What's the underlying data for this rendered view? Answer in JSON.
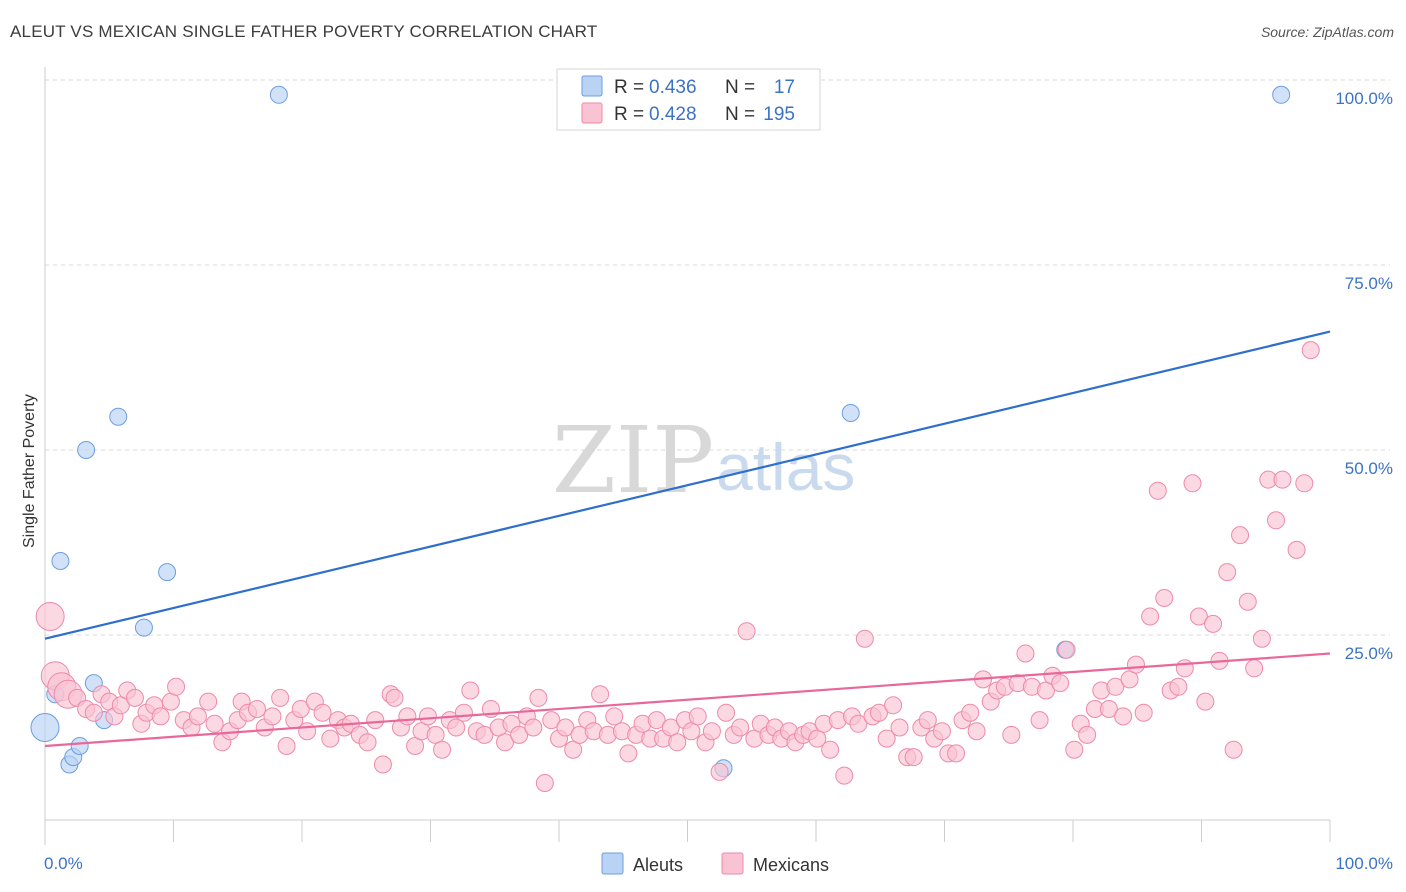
{
  "title": "ALEUT VS MEXICAN SINGLE FATHER POVERTY CORRELATION CHART",
  "source": "Source: ZipAtlas.com",
  "watermark": {
    "zip": "ZIP",
    "atlas": "atlas"
  },
  "colors": {
    "aleut_fill": "#b9d3f5",
    "aleut_stroke": "#6d9ee0",
    "aleut_line": "#2e6fcb",
    "mexican_fill": "#f9c3d3",
    "mexican_stroke": "#ee8aab",
    "mexican_line": "#e8689a",
    "tick_text": "#3b73c4",
    "grid": "#d9d9d9"
  },
  "legend": {
    "rows": [
      {
        "r_label": "R = ",
        "r_value": "0.436",
        "n_label": "N = ",
        "n_value": "17"
      },
      {
        "r_label": "R = ",
        "r_value": "0.428",
        "n_label": "N = ",
        "n_value": "195"
      }
    ]
  },
  "bottom_legend": [
    "Aleuts",
    "Mexicans"
  ],
  "chart_data": {
    "type": "scatter",
    "title": "ALEUT VS MEXICAN SINGLE FATHER POVERTY CORRELATION CHART",
    "xlabel": "",
    "ylabel": "Single Father Poverty",
    "xlim": [
      0,
      100
    ],
    "ylim": [
      0,
      100
    ],
    "x_tick_labels": [
      "0.0%",
      "100.0%"
    ],
    "y_tick_labels": [
      "25.0%",
      "50.0%",
      "75.0%",
      "100.0%"
    ],
    "y_ticks": [
      25,
      50,
      75,
      100
    ],
    "grid": true,
    "series": [
      {
        "name": "Aleuts",
        "r": 0.436,
        "n": 17,
        "trend": {
          "x": [
            0,
            100
          ],
          "y": [
            24.5,
            66.0
          ]
        },
        "points": [
          {
            "x": 0.0,
            "y": 12.5,
            "s": "l"
          },
          {
            "x": 0.8,
            "y": 17.0
          },
          {
            "x": 1.2,
            "y": 35.0
          },
          {
            "x": 1.9,
            "y": 7.5
          },
          {
            "x": 2.2,
            "y": 8.5
          },
          {
            "x": 2.7,
            "y": 10.0
          },
          {
            "x": 3.2,
            "y": 50.0
          },
          {
            "x": 3.8,
            "y": 18.5
          },
          {
            "x": 4.6,
            "y": 13.5
          },
          {
            "x": 5.7,
            "y": 54.5
          },
          {
            "x": 7.7,
            "y": 26.0
          },
          {
            "x": 9.5,
            "y": 33.5
          },
          {
            "x": 18.2,
            "y": 98.0
          },
          {
            "x": 52.8,
            "y": 7.0
          },
          {
            "x": 62.7,
            "y": 55.0
          },
          {
            "x": 79.4,
            "y": 23.0
          },
          {
            "x": 96.2,
            "y": 98.0
          }
        ]
      },
      {
        "name": "Mexicans",
        "r": 0.428,
        "n": 195,
        "trend": {
          "x": [
            0,
            100
          ],
          "y": [
            10.0,
            22.5
          ]
        },
        "points": [
          {
            "x": 0.4,
            "y": 27.5,
            "s": "l"
          },
          {
            "x": 0.8,
            "y": 19.5,
            "s": "l"
          },
          {
            "x": 1.3,
            "y": 18.0,
            "s": "l"
          },
          {
            "x": 1.8,
            "y": 17.0,
            "s": "l"
          },
          {
            "x": 2.5,
            "y": 16.5
          },
          {
            "x": 3.2,
            "y": 15.0
          },
          {
            "x": 3.8,
            "y": 14.5
          },
          {
            "x": 4.4,
            "y": 17.0
          },
          {
            "x": 5.0,
            "y": 16.0
          },
          {
            "x": 5.4,
            "y": 14.0
          },
          {
            "x": 5.9,
            "y": 15.5
          },
          {
            "x": 6.4,
            "y": 17.5
          },
          {
            "x": 7.0,
            "y": 16.5
          },
          {
            "x": 7.5,
            "y": 13.0
          },
          {
            "x": 7.9,
            "y": 14.5
          },
          {
            "x": 8.5,
            "y": 15.5
          },
          {
            "x": 9.0,
            "y": 14.0
          },
          {
            "x": 9.8,
            "y": 16.0
          },
          {
            "x": 10.2,
            "y": 18.0
          },
          {
            "x": 10.8,
            "y": 13.5
          },
          {
            "x": 11.4,
            "y": 12.5
          },
          {
            "x": 11.9,
            "y": 14.0
          },
          {
            "x": 12.7,
            "y": 16.0
          },
          {
            "x": 13.2,
            "y": 13.0
          },
          {
            "x": 13.8,
            "y": 10.5
          },
          {
            "x": 14.4,
            "y": 12.0
          },
          {
            "x": 15.0,
            "y": 13.5
          },
          {
            "x": 15.3,
            "y": 16.0
          },
          {
            "x": 15.8,
            "y": 14.5
          },
          {
            "x": 16.5,
            "y": 15.0
          },
          {
            "x": 17.1,
            "y": 12.5
          },
          {
            "x": 17.7,
            "y": 14.0
          },
          {
            "x": 18.3,
            "y": 16.5
          },
          {
            "x": 18.8,
            "y": 10.0
          },
          {
            "x": 19.4,
            "y": 13.5
          },
          {
            "x": 19.9,
            "y": 15.0
          },
          {
            "x": 20.4,
            "y": 12.0
          },
          {
            "x": 21.0,
            "y": 16.0
          },
          {
            "x": 21.6,
            "y": 14.5
          },
          {
            "x": 22.2,
            "y": 11.0
          },
          {
            "x": 22.8,
            "y": 13.5
          },
          {
            "x": 23.3,
            "y": 12.5
          },
          {
            "x": 23.8,
            "y": 13.0
          },
          {
            "x": 24.5,
            "y": 11.5
          },
          {
            "x": 25.1,
            "y": 10.5
          },
          {
            "x": 25.7,
            "y": 13.5
          },
          {
            "x": 26.3,
            "y": 7.5
          },
          {
            "x": 26.9,
            "y": 17.0
          },
          {
            "x": 27.2,
            "y": 16.5
          },
          {
            "x": 27.7,
            "y": 12.5
          },
          {
            "x": 28.2,
            "y": 14.0
          },
          {
            "x": 28.8,
            "y": 10.0
          },
          {
            "x": 29.3,
            "y": 12.0
          },
          {
            "x": 29.8,
            "y": 14.0
          },
          {
            "x": 30.4,
            "y": 11.5
          },
          {
            "x": 30.9,
            "y": 9.5
          },
          {
            "x": 31.5,
            "y": 13.5
          },
          {
            "x": 32.0,
            "y": 12.5
          },
          {
            "x": 32.6,
            "y": 14.5
          },
          {
            "x": 33.1,
            "y": 17.5
          },
          {
            "x": 33.6,
            "y": 12.0
          },
          {
            "x": 34.2,
            "y": 11.5
          },
          {
            "x": 34.7,
            "y": 15.0
          },
          {
            "x": 35.3,
            "y": 12.5
          },
          {
            "x": 35.8,
            "y": 10.5
          },
          {
            "x": 36.3,
            "y": 13.0
          },
          {
            "x": 36.9,
            "y": 11.5
          },
          {
            "x": 37.5,
            "y": 14.0
          },
          {
            "x": 38.0,
            "y": 12.5
          },
          {
            "x": 38.4,
            "y": 16.5
          },
          {
            "x": 38.9,
            "y": 5.0
          },
          {
            "x": 39.4,
            "y": 13.5
          },
          {
            "x": 40.0,
            "y": 11.0
          },
          {
            "x": 40.5,
            "y": 12.5
          },
          {
            "x": 41.1,
            "y": 9.5
          },
          {
            "x": 41.6,
            "y": 11.5
          },
          {
            "x": 42.2,
            "y": 13.5
          },
          {
            "x": 42.7,
            "y": 12.0
          },
          {
            "x": 43.2,
            "y": 17.0
          },
          {
            "x": 43.8,
            "y": 11.5
          },
          {
            "x": 44.3,
            "y": 14.0
          },
          {
            "x": 44.9,
            "y": 12.0
          },
          {
            "x": 45.4,
            "y": 9.0
          },
          {
            "x": 46.0,
            "y": 11.5
          },
          {
            "x": 46.5,
            "y": 13.0
          },
          {
            "x": 47.1,
            "y": 11.0
          },
          {
            "x": 47.6,
            "y": 13.5
          },
          {
            "x": 48.1,
            "y": 11.0
          },
          {
            "x": 48.7,
            "y": 12.5
          },
          {
            "x": 49.2,
            "y": 10.5
          },
          {
            "x": 49.8,
            "y": 13.5
          },
          {
            "x": 50.3,
            "y": 12.0
          },
          {
            "x": 50.8,
            "y": 14.0
          },
          {
            "x": 51.4,
            "y": 10.5
          },
          {
            "x": 51.9,
            "y": 12.0
          },
          {
            "x": 52.5,
            "y": 6.5
          },
          {
            "x": 53.0,
            "y": 14.5
          },
          {
            "x": 53.6,
            "y": 11.5
          },
          {
            "x": 54.1,
            "y": 12.5
          },
          {
            "x": 54.6,
            "y": 25.5
          },
          {
            "x": 55.2,
            "y": 11.0
          },
          {
            "x": 55.7,
            "y": 13.0
          },
          {
            "x": 56.3,
            "y": 11.5
          },
          {
            "x": 56.8,
            "y": 12.5
          },
          {
            "x": 57.3,
            "y": 11.0
          },
          {
            "x": 57.9,
            "y": 12.0
          },
          {
            "x": 58.4,
            "y": 10.5
          },
          {
            "x": 59.0,
            "y": 11.5
          },
          {
            "x": 59.5,
            "y": 12.0
          },
          {
            "x": 60.1,
            "y": 11.0
          },
          {
            "x": 60.6,
            "y": 13.0
          },
          {
            "x": 61.1,
            "y": 9.5
          },
          {
            "x": 61.7,
            "y": 13.5
          },
          {
            "x": 62.2,
            "y": 6.0
          },
          {
            "x": 62.8,
            "y": 14.0
          },
          {
            "x": 63.3,
            "y": 13.0
          },
          {
            "x": 63.8,
            "y": 24.5
          },
          {
            "x": 64.4,
            "y": 14.0
          },
          {
            "x": 64.9,
            "y": 14.5
          },
          {
            "x": 65.5,
            "y": 11.0
          },
          {
            "x": 66.0,
            "y": 15.5
          },
          {
            "x": 66.5,
            "y": 12.5
          },
          {
            "x": 67.1,
            "y": 8.5
          },
          {
            "x": 67.6,
            "y": 8.5
          },
          {
            "x": 68.2,
            "y": 12.5
          },
          {
            "x": 68.7,
            "y": 13.5
          },
          {
            "x": 69.2,
            "y": 11.0
          },
          {
            "x": 69.8,
            "y": 12.0
          },
          {
            "x": 70.3,
            "y": 9.0
          },
          {
            "x": 70.9,
            "y": 9.0
          },
          {
            "x": 71.4,
            "y": 13.5
          },
          {
            "x": 72.0,
            "y": 14.5
          },
          {
            "x": 72.5,
            "y": 12.0
          },
          {
            "x": 73.0,
            "y": 19.0
          },
          {
            "x": 73.6,
            "y": 16.0
          },
          {
            "x": 74.1,
            "y": 17.5
          },
          {
            "x": 74.7,
            "y": 18.0
          },
          {
            "x": 75.2,
            "y": 11.5
          },
          {
            "x": 75.7,
            "y": 18.5
          },
          {
            "x": 76.3,
            "y": 22.5
          },
          {
            "x": 76.8,
            "y": 18.0
          },
          {
            "x": 77.4,
            "y": 13.5
          },
          {
            "x": 77.9,
            "y": 17.5
          },
          {
            "x": 78.4,
            "y": 19.5
          },
          {
            "x": 79.0,
            "y": 18.5
          },
          {
            "x": 79.5,
            "y": 23.0
          },
          {
            "x": 80.1,
            "y": 9.5
          },
          {
            "x": 80.6,
            "y": 13.0
          },
          {
            "x": 81.1,
            "y": 11.5
          },
          {
            "x": 81.7,
            "y": 15.0
          },
          {
            "x": 82.2,
            "y": 17.5
          },
          {
            "x": 82.8,
            "y": 15.0
          },
          {
            "x": 83.3,
            "y": 18.0
          },
          {
            "x": 83.9,
            "y": 14.0
          },
          {
            "x": 84.4,
            "y": 19.0
          },
          {
            "x": 84.9,
            "y": 21.0
          },
          {
            "x": 85.5,
            "y": 14.5
          },
          {
            "x": 86.0,
            "y": 27.5
          },
          {
            "x": 86.6,
            "y": 44.5
          },
          {
            "x": 87.1,
            "y": 30.0
          },
          {
            "x": 87.6,
            "y": 17.5
          },
          {
            "x": 88.2,
            "y": 18.0
          },
          {
            "x": 88.7,
            "y": 20.5
          },
          {
            "x": 89.3,
            "y": 45.5
          },
          {
            "x": 89.8,
            "y": 27.5
          },
          {
            "x": 90.3,
            "y": 16.0
          },
          {
            "x": 90.9,
            "y": 26.5
          },
          {
            "x": 91.4,
            "y": 21.5
          },
          {
            "x": 92.0,
            "y": 33.5
          },
          {
            "x": 92.5,
            "y": 9.5
          },
          {
            "x": 93.0,
            "y": 38.5
          },
          {
            "x": 93.6,
            "y": 29.5
          },
          {
            "x": 94.1,
            "y": 20.5
          },
          {
            "x": 94.7,
            "y": 24.5
          },
          {
            "x": 95.2,
            "y": 46.0
          },
          {
            "x": 95.8,
            "y": 40.5
          },
          {
            "x": 96.3,
            "y": 46.0
          },
          {
            "x": 97.4,
            "y": 36.5
          },
          {
            "x": 98.0,
            "y": 45.5
          },
          {
            "x": 98.5,
            "y": 63.5
          }
        ]
      }
    ]
  }
}
